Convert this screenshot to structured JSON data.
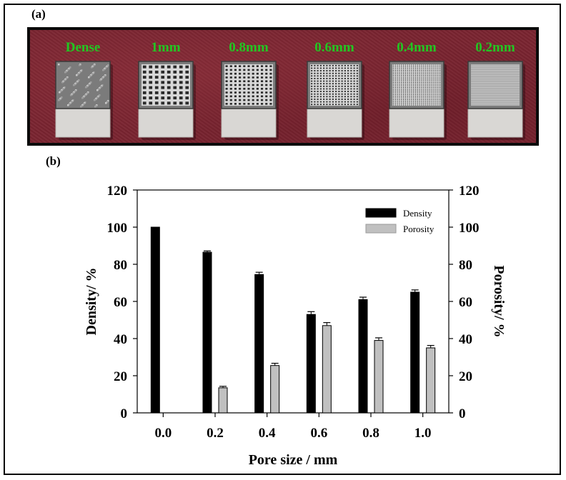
{
  "panel_a_label": "(a)",
  "panel_b_label": "(b)",
  "photo": {
    "samples": [
      {
        "label": "Dense",
        "grid": 0
      },
      {
        "label": "1mm",
        "grid": 8
      },
      {
        "label": "0.8mm",
        "grid": 11
      },
      {
        "label": "0.6mm",
        "grid": 16
      },
      {
        "label": "0.4mm",
        "grid": 24
      },
      {
        "label": "0.2mm",
        "grid": 34
      }
    ],
    "label_color": "#22c722"
  },
  "chart_data": {
    "type": "bar",
    "categories": [
      "0.0",
      "0.2",
      "0.4",
      "0.6",
      "0.8",
      "1.0"
    ],
    "series": [
      {
        "name": "Density",
        "color": "#000000",
        "values": [
          100,
          86.5,
          74.5,
          53,
          61,
          65
        ],
        "errors": [
          0,
          0.7,
          1.2,
          1.5,
          1.3,
          1.2
        ]
      },
      {
        "name": "Porosity",
        "color": "#c0c0c0",
        "values": [
          0,
          13.5,
          25.5,
          47,
          39,
          35
        ],
        "errors": [
          0,
          0.8,
          1.2,
          1.6,
          1.4,
          1.3
        ]
      }
    ],
    "xlabel": "Pore size / mm",
    "ylabel_left": "Density/ %",
    "ylabel_right": "Porosity/ %",
    "ylim": [
      0,
      120
    ],
    "yticks": [
      "0",
      "20",
      "40",
      "60",
      "80",
      "100",
      "120"
    ],
    "legend_position": "top-right",
    "grid": false
  }
}
